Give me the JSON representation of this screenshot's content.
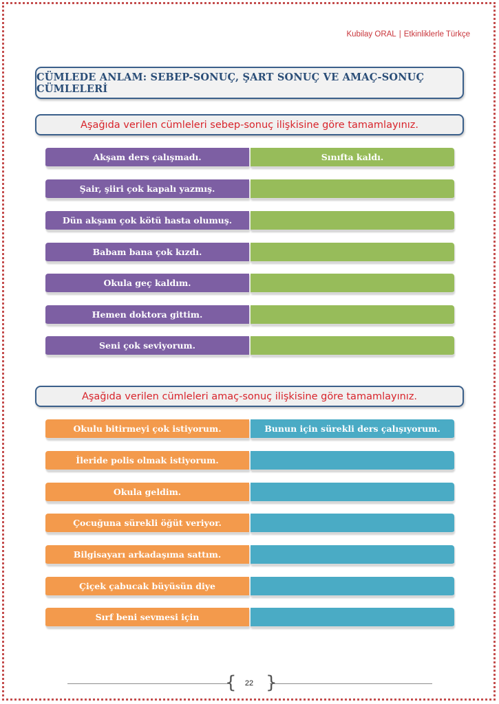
{
  "header": {
    "author": "Kubilay ORAL",
    "book": "Etkinliklerle Türkçe"
  },
  "title": "CÜMLEDE ANLAM: SEBEP-SONUÇ, ŞART SONUÇ VE AMAÇ-SONUÇ CÜMLELERİ",
  "section1": {
    "instruction": "Aşağıda verilen cümleleri sebep-sonuç ilişkisine göre tamamlayınız.",
    "rows": [
      {
        "left": "Akşam ders çalışmadı.",
        "right": "Sınıfta kaldı."
      },
      {
        "left": "Şair, şiiri çok kapalı yazmış.",
        "right": ""
      },
      {
        "left": "Dün akşam çok kötü hasta olumuş.",
        "right": ""
      },
      {
        "left": "Babam bana çok kızdı.",
        "right": ""
      },
      {
        "left": "Okula geç kaldım.",
        "right": ""
      },
      {
        "left": "Hemen doktora gittim.",
        "right": ""
      },
      {
        "left": "Seni çok seviyorum.",
        "right": ""
      }
    ]
  },
  "section2": {
    "instruction": "Aşağıda verilen cümleleri amaç-sonuç ilişkisine göre tamamlayınız.",
    "rows": [
      {
        "left": "Okulu bitirmeyi çok istiyorum.",
        "right": "Bunun için sürekli ders çalışıyorum."
      },
      {
        "left": "İleride polis olmak istiyorum.",
        "right": ""
      },
      {
        "left": "Okula geldim.",
        "right": ""
      },
      {
        "left": "Çocuğuna sürekli öğüt veriyor.",
        "right": ""
      },
      {
        "left": "Bilgisayarı arkadaşıma sattım.",
        "right": ""
      },
      {
        "left": "Çiçek çabucak büyüsün diye",
        "right": ""
      },
      {
        "left": "Sırf beni sevmesi için",
        "right": ""
      }
    ]
  },
  "footer": {
    "page_number": "22"
  },
  "colors": {
    "purple": "#7d5fa3",
    "green": "#97bc5a",
    "orange": "#f39a4c",
    "teal": "#4aabc5",
    "frame": "#c44d4d"
  }
}
